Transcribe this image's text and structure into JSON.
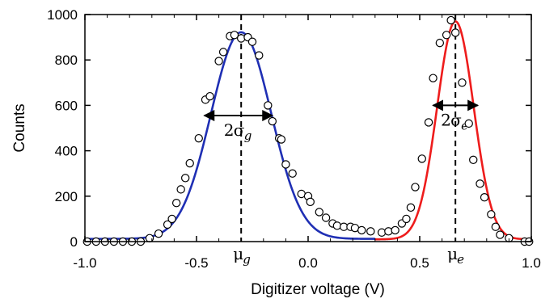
{
  "chart_data": {
    "type": "line",
    "title": "",
    "xlabel": "Digitizer voltage (V)",
    "ylabel": "Counts",
    "xlim": [
      -1.0,
      1.0
    ],
    "ylim": [
      0,
      1000
    ],
    "x_ticks": [
      -1.0,
      -0.5,
      0.0,
      0.5,
      1.0
    ],
    "x_tick_labels": [
      "-1.0",
      "-0.5",
      "0.0",
      "0.5",
      "1.0"
    ],
    "y_ticks": [
      0,
      200,
      400,
      600,
      800,
      1000
    ],
    "y_tick_labels": [
      "0",
      "200",
      "400",
      "600",
      "800",
      "1000"
    ],
    "grid": false,
    "legend": "none",
    "series": [
      {
        "kind": "scatter",
        "marker": "open-circle",
        "color": "#000000",
        "points": [
          [
            -0.99,
            0
          ],
          [
            -0.95,
            0
          ],
          [
            -0.91,
            0
          ],
          [
            -0.87,
            0
          ],
          [
            -0.83,
            0
          ],
          [
            -0.79,
            0
          ],
          [
            -0.75,
            0
          ],
          [
            -0.71,
            15
          ],
          [
            -0.67,
            35
          ],
          [
            -0.63,
            75
          ],
          [
            -0.61,
            100
          ],
          [
            -0.59,
            170
          ],
          [
            -0.57,
            230
          ],
          [
            -0.55,
            280
          ],
          [
            -0.53,
            345
          ],
          [
            -0.49,
            455
          ],
          [
            -0.46,
            625
          ],
          [
            -0.44,
            640
          ],
          [
            -0.4,
            795
          ],
          [
            -0.38,
            835
          ],
          [
            -0.35,
            905
          ],
          [
            -0.33,
            910
          ],
          [
            -0.3,
            895
          ],
          [
            -0.27,
            900
          ],
          [
            -0.25,
            880
          ],
          [
            -0.22,
            820
          ],
          [
            -0.18,
            600
          ],
          [
            -0.16,
            530
          ],
          [
            -0.13,
            455
          ],
          [
            -0.12,
            450
          ],
          [
            -0.1,
            340
          ],
          [
            -0.07,
            300
          ],
          [
            -0.03,
            210
          ],
          [
            0.0,
            200
          ],
          [
            0.01,
            175
          ],
          [
            0.05,
            130
          ],
          [
            0.08,
            105
          ],
          [
            0.11,
            80
          ],
          [
            0.13,
            70
          ],
          [
            0.16,
            65
          ],
          [
            0.19,
            65
          ],
          [
            0.21,
            60
          ],
          [
            0.24,
            50
          ],
          [
            0.28,
            45
          ],
          [
            0.33,
            40
          ],
          [
            0.36,
            45
          ],
          [
            0.39,
            50
          ],
          [
            0.42,
            80
          ],
          [
            0.44,
            100
          ],
          [
            0.46,
            150
          ],
          [
            0.48,
            240
          ],
          [
            0.51,
            365
          ],
          [
            0.54,
            525
          ],
          [
            0.56,
            720
          ],
          [
            0.59,
            875
          ],
          [
            0.62,
            910
          ],
          [
            0.64,
            975
          ],
          [
            0.66,
            920
          ],
          [
            0.69,
            700
          ],
          [
            0.72,
            520
          ],
          [
            0.74,
            360
          ],
          [
            0.77,
            255
          ],
          [
            0.79,
            195
          ],
          [
            0.82,
            120
          ],
          [
            0.84,
            65
          ],
          [
            0.86,
            30
          ],
          [
            0.9,
            15
          ],
          [
            0.97,
            0
          ],
          [
            0.99,
            0
          ]
        ]
      },
      {
        "kind": "line",
        "color": "#1f2fb4",
        "fit": {
          "amplitude": 910,
          "center": -0.3,
          "sigma": 0.135,
          "offset": 12
        },
        "range": [
          -1.0,
          0.3
        ]
      },
      {
        "kind": "line",
        "color": "#ee1c1c",
        "fit": {
          "amplitude": 960,
          "center": 0.66,
          "sigma": 0.082,
          "offset": 10
        },
        "range": [
          0.3,
          1.0
        ]
      }
    ],
    "annotations": [
      {
        "kind": "vline-dashed",
        "x": -0.3,
        "label_greek": "μ",
        "label_sub": "g"
      },
      {
        "kind": "vline-dashed",
        "x": 0.66,
        "label_greek": "μ",
        "label_sub": "e"
      },
      {
        "kind": "double-arrow",
        "x_from": -0.465,
        "x_to": -0.16,
        "y": 555,
        "label_num": "2",
        "label_greek": "σ",
        "label_sub": "g"
      },
      {
        "kind": "double-arrow",
        "x_from": 0.56,
        "x_to": 0.76,
        "y": 600,
        "label_num": "2",
        "label_greek": "σ",
        "label_sub": "e"
      }
    ]
  }
}
